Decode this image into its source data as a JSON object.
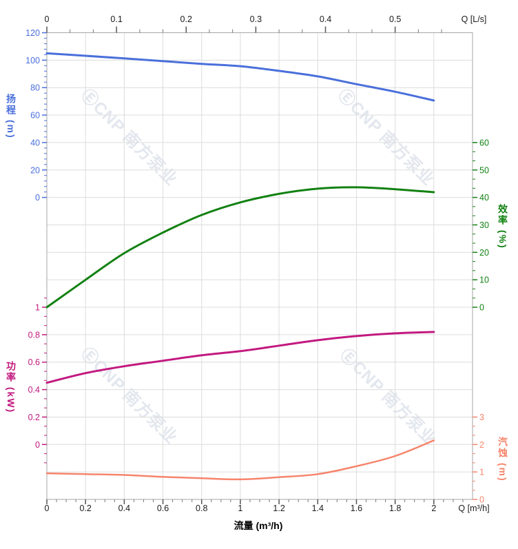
{
  "watermark": {
    "logo_glyph": "Ⓔ",
    "text": "CNP 南方泵业",
    "color": "#e3e7ee"
  },
  "chart_data": {
    "type": "line",
    "x_axis": {
      "top_label": "Q [L/s]",
      "bottom_label": "Q [m³/h]",
      "bottom_title": "流量 (m³/h)",
      "top_ticks": [
        0,
        0.1,
        0.2,
        0.3,
        0.4,
        0.5
      ],
      "bottom_ticks": [
        0,
        0.2,
        0.4,
        0.6,
        0.8,
        1,
        1.2,
        1.4,
        1.6,
        1.8,
        2
      ],
      "bottom_range": [
        0,
        2.2
      ],
      "top_range": [
        0,
        0.611
      ],
      "ls_per_m3h": 0.2778
    },
    "categories_flow_m3h": [
      0,
      0.2,
      0.4,
      0.6,
      0.8,
      1,
      1.2,
      1.4,
      1.6,
      1.8,
      2
    ],
    "series": [
      {
        "id": "head",
        "label": "扬程 (m)",
        "color": "#4a6fdb",
        "ticks": [
          120,
          100,
          80,
          60,
          40,
          20,
          0
        ],
        "range": [
          0,
          120
        ],
        "values": [
          105,
          103.2,
          101.3,
          99.3,
          97.3,
          95.6,
          92.2,
          88.2,
          82.5,
          77,
          70.6
        ]
      },
      {
        "id": "efficiency",
        "label": "效率 (%)",
        "color": "#128112",
        "ticks": [
          60,
          50,
          40,
          30,
          20,
          10,
          0
        ],
        "range": [
          0,
          60
        ],
        "values": [
          0,
          10,
          19.7,
          27.2,
          33.6,
          38.2,
          41.3,
          43.2,
          43.7,
          43,
          41.9
        ]
      },
      {
        "id": "power",
        "label": "功率 (kW)",
        "color": "#c2187f",
        "ticks": [
          1,
          0.8,
          0.6,
          0.4,
          0.2,
          0
        ],
        "range": [
          0,
          1
        ],
        "values": [
          0.45,
          0.52,
          0.57,
          0.61,
          0.65,
          0.68,
          0.72,
          0.76,
          0.79,
          0.81,
          0.82
        ]
      },
      {
        "id": "npsh",
        "label": "汽蚀 (m)",
        "color": "#f6846b",
        "ticks": [
          3,
          2,
          1,
          0
        ],
        "range": [
          0,
          3
        ],
        "values": [
          0.95,
          0.92,
          0.89,
          0.82,
          0.77,
          0.73,
          0.81,
          0.92,
          1.21,
          1.58,
          2.15
        ]
      }
    ],
    "grid": {
      "color": "#dcdcdc",
      "border_color": "#a6a6a6",
      "x_tick_label_color": "#1a1a1a"
    },
    "legend": "none"
  }
}
